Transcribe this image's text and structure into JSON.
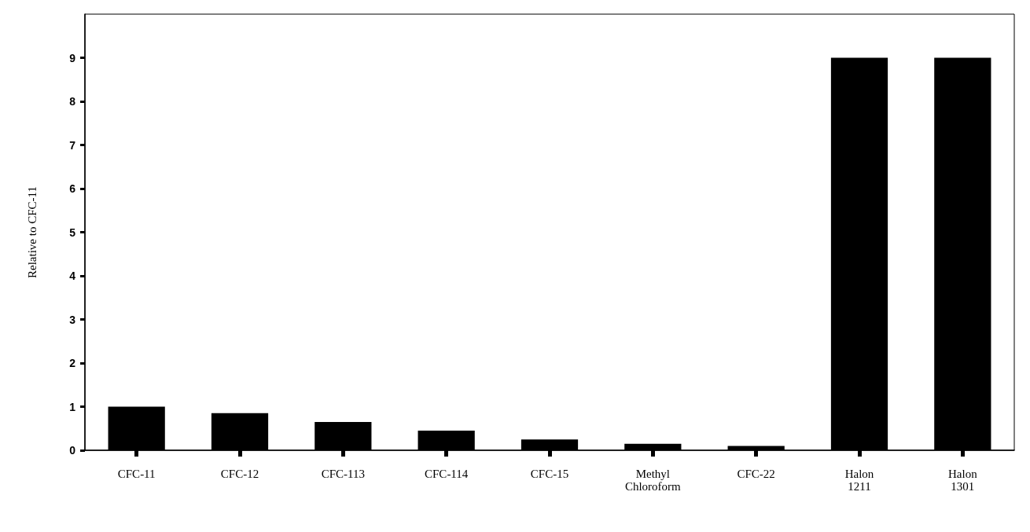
{
  "chart_data": {
    "type": "bar",
    "ylabel": "Relative to CFC-11",
    "categories": [
      "CFC-11",
      "CFC-12",
      "CFC-113",
      "CFC-114",
      "CFC-15",
      "Methyl\nChloroform",
      "CFC-22",
      "Halon\n1211",
      "Halon\n1301"
    ],
    "values": [
      1,
      0.85,
      0.65,
      0.45,
      0.25,
      0.15,
      0.1,
      9,
      9
    ],
    "color": "#000000",
    "ylim": [
      0,
      10
    ],
    "yticks": [
      0,
      1,
      2,
      3,
      4,
      5,
      6,
      7,
      8,
      9
    ]
  }
}
